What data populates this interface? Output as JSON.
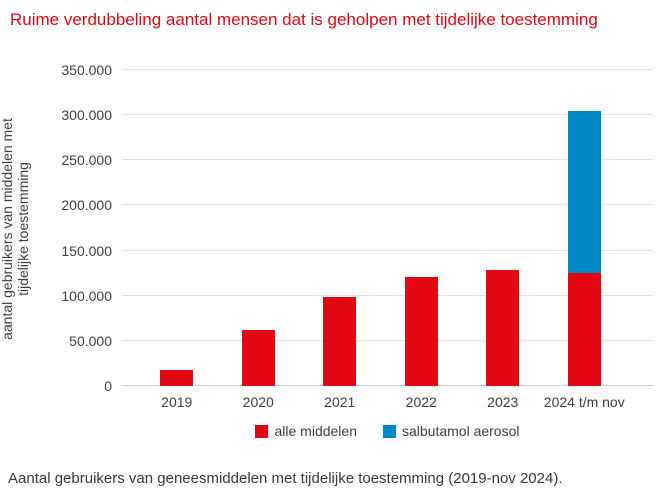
{
  "title": "Ruime verdubbeling aantal mensen dat is geholpen met tijdelijke toestemming",
  "caption": "Aantal gebruikers van geneesmiddelen met tijdelijke toestemming (2019-nov 2024).",
  "colors": {
    "title": "#e30613",
    "grid": "#e0e0e0",
    "axis_line": "#cfcfcf",
    "text": "#3f3f3f"
  },
  "chart_data": {
    "type": "bar",
    "stacked": true,
    "title": "Ruime verdubbeling aantal mensen dat is geholpen met tijdelijke toestemming",
    "categories": [
      "2019",
      "2020",
      "2021",
      "2022",
      "2023",
      "2024 t/m nov"
    ],
    "series": [
      {
        "name": "alle middelen",
        "color": "#e30613",
        "values": [
          18000,
          62000,
          99000,
          121000,
          129000,
          125000
        ]
      },
      {
        "name": "salbutamol aerosol",
        "color": "#0089c6",
        "values": [
          0,
          0,
          0,
          0,
          0,
          180000
        ]
      }
    ],
    "xlabel": "",
    "ylabel": "aantal gebruikers van middelen met tijdelijke toestemming",
    "ylabel_lines": [
      "aantal gebruikers van middelen met",
      "tijdelijke toestemming"
    ],
    "ylim": [
      0,
      350000
    ],
    "yticks": [
      {
        "value": 0,
        "label": "0"
      },
      {
        "value": 50000,
        "label": "50.000"
      },
      {
        "value": 100000,
        "label": "100.000"
      },
      {
        "value": 150000,
        "label": "150.000"
      },
      {
        "value": 200000,
        "label": "200.000"
      },
      {
        "value": 250000,
        "label": "250.000"
      },
      {
        "value": 300000,
        "label": "300.000"
      },
      {
        "value": 350000,
        "label": "350.000"
      }
    ],
    "grid": true,
    "legend_position": "bottom"
  }
}
